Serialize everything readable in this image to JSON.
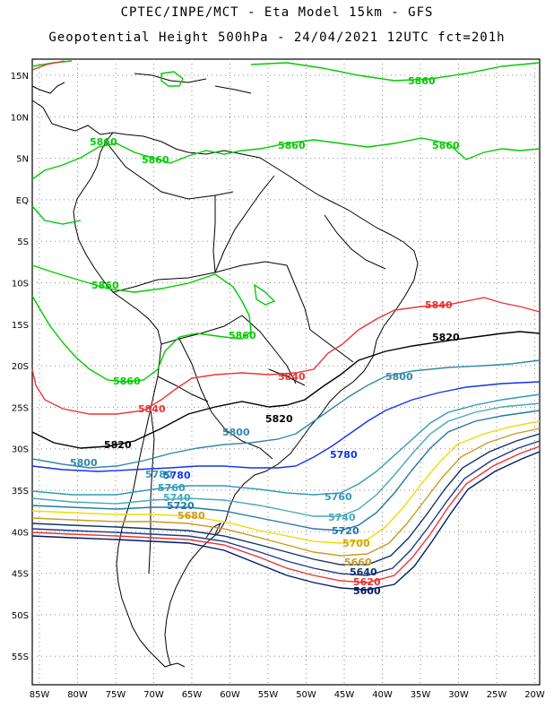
{
  "header": {
    "line1": "CPTEC/INPE/MCT -  Eta Model 15km - GFS",
    "line2": "Geopotential Height 500hPa - 24/04/2021 12UTC fct=201h"
  },
  "axes": {
    "lat_labels": [
      "15N",
      "10N",
      "5N",
      "EQ",
      "5S",
      "10S",
      "15S",
      "20S",
      "25S",
      "30S",
      "35S",
      "40S",
      "45S",
      "50S",
      "55S"
    ],
    "lon_labels": [
      "85W",
      "80W",
      "75W",
      "70W",
      "65W",
      "60W",
      "55W",
      "50W",
      "45W",
      "40W",
      "35W",
      "30W",
      "25W",
      "20W"
    ]
  },
  "contours": [
    {
      "value": "5860",
      "color": "#00cc00"
    },
    {
      "value": "5840",
      "color": "#ee3333"
    },
    {
      "value": "5820",
      "color": "#000000"
    },
    {
      "value": "5800",
      "color": "#3388aa"
    },
    {
      "value": "5780",
      "color": "#1133ee"
    },
    {
      "value": "5760",
      "color": "#3399bb"
    },
    {
      "value": "5740",
      "color": "#44aabb"
    },
    {
      "value": "5720",
      "color": "#2277aa"
    },
    {
      "value": "5700",
      "color": "#eedd00"
    },
    {
      "value": "5680",
      "color": "#cc9922"
    },
    {
      "value": "5660",
      "color": "#113366"
    },
    {
      "value": "5620",
      "color": "#ee3333"
    },
    {
      "value": "5600",
      "color": "#001a66"
    }
  ],
  "labels": {
    "l5860_a": "5860",
    "l5860_b": "5860",
    "l5860_c": "5860",
    "l5860_d": "5860",
    "l5860_e": "5860",
    "l5860_f": "5860",
    "l5860_g": "5860",
    "l5860_h": "5860",
    "l5840_a": "5840",
    "l5840_b": "5840",
    "l5840_c": "5840",
    "l5820_a": "5820",
    "l5820_b": "5820",
    "l5820_c": "5820",
    "l5800_a": "5800",
    "l5800_b": "5800",
    "l5800_c": "5800",
    "l5780_a": "5780",
    "l5780_b": "5780",
    "l5780_c": "5780",
    "l5760_a": "5760",
    "l5760_b": "5760",
    "l5740_a": "5740",
    "l5740_b": "5740",
    "l5720_a": "5720",
    "l5720_b": "5720",
    "l5700": "5700",
    "l5680": "5680",
    "l5660": "5660",
    "l5640": "5640",
    "l5620": "5620",
    "l5600": "5600"
  }
}
